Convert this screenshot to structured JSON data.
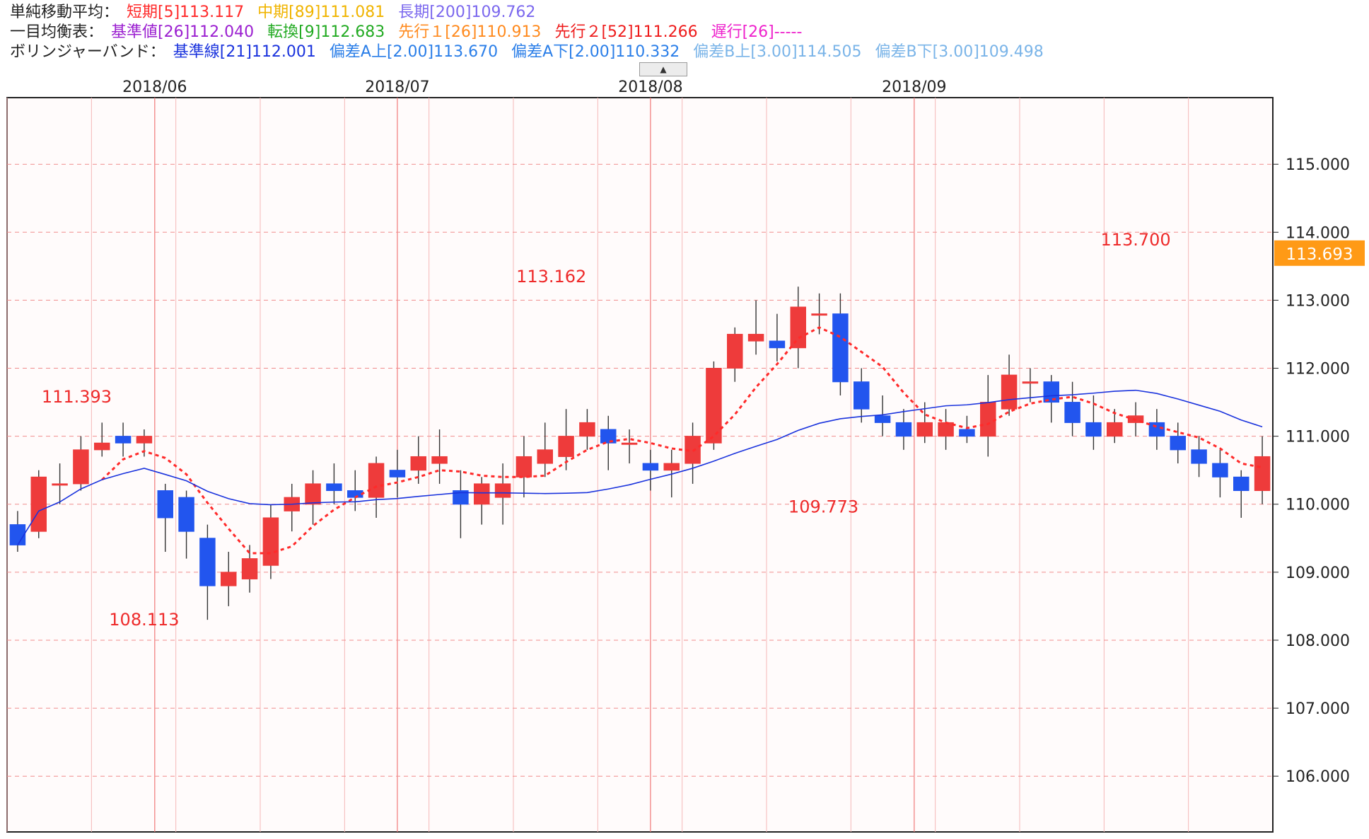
{
  "legend": {
    "sma": {
      "label": "単純移動平均：",
      "items": [
        {
          "text": "短期[5]113.117",
          "color": "#ff2a2a"
        },
        {
          "text": "中期[89]111.081",
          "color": "#f0b400"
        },
        {
          "text": "長期[200]109.762",
          "color": "#7b68ee"
        }
      ]
    },
    "ichimoku": {
      "label": "一目均衡表：",
      "items": [
        {
          "text": "基準値[26]112.040",
          "color": "#9b1fd0"
        },
        {
          "text": "転換[9]112.683",
          "color": "#22aa22"
        },
        {
          "text": "先行１[26]110.913",
          "color": "#ff8a1e"
        },
        {
          "text": "先行２[52]111.266",
          "color": "#ee1c1c"
        },
        {
          "text": "遅行[26]-----",
          "color": "#ee22cc"
        }
      ]
    },
    "bollinger": {
      "label": "ボリンジャーバンド：",
      "items": [
        {
          "text": "基準線[21]112.001",
          "color": "#1a33dd"
        },
        {
          "text": "偏差A上[2.00]113.670",
          "color": "#2a7ee8"
        },
        {
          "text": "偏差A下[2.00]110.332",
          "color": "#2a7ee8"
        },
        {
          "text": "偏差B上[3.00]114.505",
          "color": "#7ab4e8"
        },
        {
          "text": "偏差B下[3.00]109.498",
          "color": "#7ab4e8"
        }
      ]
    },
    "collapse_icon": "triangle-up-icon"
  },
  "chart_data": {
    "type": "candlestick",
    "x_labels": [
      {
        "text": "2018/06",
        "index": 6.5
      },
      {
        "text": "2018/07",
        "index": 18
      },
      {
        "text": "2018/08",
        "index": 30
      },
      {
        "text": "2018/09",
        "index": 42.5
      }
    ],
    "y_ticks": [
      "106.000",
      "107.000",
      "108.000",
      "109.000",
      "110.000",
      "111.000",
      "112.000",
      "113.000",
      "114.000",
      "115.000"
    ],
    "ylim": [
      105.18,
      115.98
    ],
    "n_slots": 60,
    "current_price": {
      "value": 113.693,
      "text": "113.693"
    },
    "annotations": [
      {
        "text": "111.393",
        "value": 111.393,
        "index": 2.8
      },
      {
        "text": "108.113",
        "value": 108.113,
        "index": 6.0
      },
      {
        "text": "113.162",
        "value": 113.162,
        "index": 25.3
      },
      {
        "text": "109.773",
        "value": 109.773,
        "index": 38.2
      },
      {
        "text": "113.700",
        "value": 113.7,
        "index": 53.0
      }
    ],
    "candles": [
      [
        109.7,
        109.4,
        109.9,
        109.3
      ],
      [
        109.6,
        110.4,
        110.5,
        109.5
      ],
      [
        110.3,
        110.3,
        110.6,
        110.0
      ],
      [
        110.3,
        110.8,
        111.0,
        110.2
      ],
      [
        110.8,
        110.9,
        111.2,
        110.7
      ],
      [
        111.0,
        110.9,
        111.2,
        110.7
      ],
      [
        110.9,
        111.0,
        111.1,
        110.7
      ],
      [
        110.2,
        109.8,
        110.3,
        109.3
      ],
      [
        110.1,
        109.6,
        110.2,
        109.2
      ],
      [
        109.5,
        108.8,
        109.7,
        108.3
      ],
      [
        108.8,
        109.0,
        109.3,
        108.5
      ],
      [
        108.9,
        109.2,
        109.4,
        108.7
      ],
      [
        109.1,
        109.8,
        110.0,
        108.9
      ],
      [
        109.9,
        110.1,
        110.3,
        109.6
      ],
      [
        110.0,
        110.3,
        110.5,
        109.7
      ],
      [
        110.3,
        110.2,
        110.6,
        110.0
      ],
      [
        110.2,
        110.1,
        110.5,
        109.9
      ],
      [
        110.1,
        110.6,
        110.7,
        109.8
      ],
      [
        110.5,
        110.4,
        110.8,
        110.1
      ],
      [
        110.5,
        110.7,
        111.0,
        110.3
      ],
      [
        110.6,
        110.7,
        111.1,
        110.3
      ],
      [
        110.2,
        110.0,
        110.5,
        109.5
      ],
      [
        110.0,
        110.3,
        110.4,
        109.7
      ],
      [
        110.1,
        110.3,
        110.6,
        109.7
      ],
      [
        110.4,
        110.7,
        111.0,
        110.1
      ],
      [
        110.6,
        110.8,
        111.2,
        110.4
      ],
      [
        110.7,
        111.0,
        111.4,
        110.5
      ],
      [
        111.0,
        111.2,
        111.4,
        110.8
      ],
      [
        111.1,
        110.9,
        111.3,
        110.5
      ],
      [
        110.9,
        110.9,
        111.1,
        110.6
      ],
      [
        110.6,
        110.5,
        110.8,
        110.2
      ],
      [
        110.5,
        110.6,
        110.8,
        110.1
      ],
      [
        110.6,
        111.0,
        111.2,
        110.3
      ],
      [
        110.9,
        112.0,
        112.1,
        110.8
      ],
      [
        112.0,
        112.5,
        112.6,
        111.8
      ],
      [
        112.4,
        112.5,
        113.0,
        112.2
      ],
      [
        112.4,
        112.3,
        112.8,
        112.1
      ],
      [
        112.3,
        112.9,
        113.2,
        112.0
      ],
      [
        112.8,
        112.8,
        113.1,
        112.5
      ],
      [
        112.8,
        111.8,
        113.1,
        111.6
      ],
      [
        111.8,
        111.4,
        112.0,
        111.2
      ],
      [
        111.3,
        111.2,
        111.6,
        111.0
      ],
      [
        111.2,
        111.0,
        111.4,
        110.8
      ],
      [
        111.0,
        111.2,
        111.5,
        110.9
      ],
      [
        111.0,
        111.2,
        111.4,
        110.8
      ],
      [
        111.1,
        111.0,
        111.3,
        110.9
      ],
      [
        111.0,
        111.5,
        111.9,
        110.7
      ],
      [
        111.4,
        111.9,
        112.2,
        111.3
      ],
      [
        111.8,
        111.8,
        112.0,
        111.5
      ],
      [
        111.8,
        111.5,
        111.9,
        111.2
      ],
      [
        111.5,
        111.2,
        111.8,
        111.0
      ],
      [
        111.2,
        111.0,
        111.6,
        110.8
      ],
      [
        111.0,
        111.2,
        111.4,
        110.9
      ],
      [
        111.2,
        111.3,
        111.5,
        111.0
      ],
      [
        111.2,
        111.0,
        111.4,
        110.8
      ],
      [
        111.0,
        110.8,
        111.2,
        110.6
      ],
      [
        110.8,
        110.6,
        111.0,
        110.4
      ],
      [
        110.6,
        110.4,
        110.8,
        110.1
      ],
      [
        110.4,
        110.2,
        110.5,
        109.8
      ],
      [
        110.2,
        110.7,
        111.0,
        110.0
      ]
    ]
  }
}
